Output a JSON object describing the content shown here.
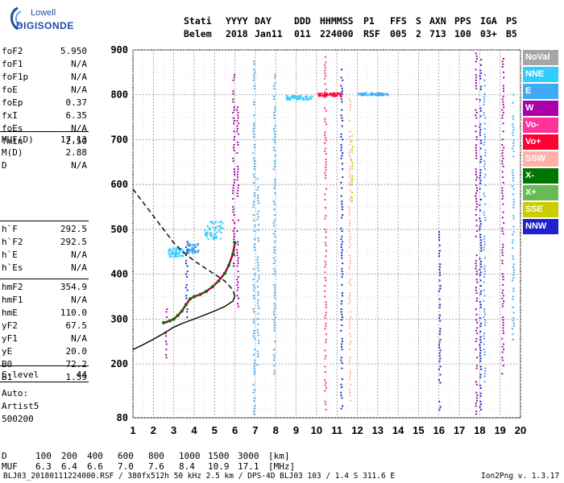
{
  "logo": {
    "brand": "Lowell",
    "product": "DIGISONDE"
  },
  "header": {
    "labels": [
      "Stati",
      "YYYY",
      "DAY",
      "DDD",
      "HHMMSS",
      "P1",
      "FFS",
      "S",
      "AXN",
      "PPS",
      "IGA",
      "PS"
    ],
    "values": [
      "Belem",
      "2018",
      "Jan11",
      "011",
      "224000",
      "RSF",
      "005",
      "2",
      "713",
      "100",
      "03+",
      "B5"
    ]
  },
  "params": {
    "group1": [
      {
        "name": "foF2",
        "value": "5.950"
      },
      {
        "name": "foF1",
        "value": "N/A"
      },
      {
        "name": "foF1p",
        "value": "N/A"
      },
      {
        "name": "foE",
        "value": "N/A"
      },
      {
        "name": "foEp",
        "value": "0.37"
      },
      {
        "name": "fxI",
        "value": "6.35"
      },
      {
        "name": "foEs",
        "value": "N/A"
      },
      {
        "name": "fmin",
        "value": "2.50"
      }
    ],
    "group2": [
      {
        "name": "MUF(D)",
        "value": "17.13"
      },
      {
        "name": "M(D)",
        "value": "2.88"
      },
      {
        "name": "D",
        "value": "N/A"
      }
    ],
    "group3": [
      {
        "name": "h`F",
        "value": "292.5"
      },
      {
        "name": "h`F2",
        "value": "292.5"
      },
      {
        "name": "h`E",
        "value": "N/A"
      },
      {
        "name": "h`Es",
        "value": "N/A"
      }
    ],
    "group4": [
      {
        "name": "hmF2",
        "value": "354.9"
      },
      {
        "name": "hmF1",
        "value": "N/A"
      },
      {
        "name": "hmE",
        "value": "110.0"
      },
      {
        "name": "yF2",
        "value": "67.5"
      },
      {
        "name": "yF1",
        "value": "N/A"
      },
      {
        "name": "yE",
        "value": "20.0"
      },
      {
        "name": "B0",
        "value": "72.2"
      },
      {
        "name": "B1",
        "value": "1.59"
      }
    ],
    "group5": [
      {
        "name": "C-level",
        "value": "44"
      }
    ]
  },
  "autoscale": {
    "line1": "Auto:",
    "line2": "Artist5",
    "line3": "500200"
  },
  "legend": [
    {
      "label": "NoVal",
      "bg": "#a6a6a6",
      "fg": "#ffffff"
    },
    {
      "label": "NNE",
      "bg": "#33ccff",
      "fg": "#ffffff"
    },
    {
      "label": "E",
      "bg": "#3fa9f5",
      "fg": "#ffffff"
    },
    {
      "label": "W",
      "bg": "#aa00aa",
      "fg": "#ffffff"
    },
    {
      "label": "Vo-",
      "bg": "#ff3399",
      "fg": "#ffffff"
    },
    {
      "label": "Vo+",
      "bg": "#ff0033",
      "fg": "#ffffff"
    },
    {
      "label": "SSW",
      "bg": "#ffb0a8",
      "fg": "#ffffff"
    },
    {
      "label": "X-",
      "bg": "#007700",
      "fg": "#ffffff"
    },
    {
      "label": "X+",
      "bg": "#66bb55",
      "fg": "#ffffff"
    },
    {
      "label": "SSE",
      "bg": "#cccc00",
      "fg": "#ffffff"
    },
    {
      "label": "NNW",
      "bg": "#2222cc",
      "fg": "#ffffff"
    }
  ],
  "muf_table": {
    "d_label": "D",
    "d_values": [
      "100",
      "200",
      "400",
      "600",
      "800",
      "1000",
      "1500",
      "3000"
    ],
    "d_unit": "[km]",
    "muf_label": "MUF",
    "muf_values": [
      "6.3",
      "6.4",
      "6.6",
      "7.0",
      "7.6",
      "8.4",
      "10.9",
      "17.1"
    ],
    "muf_unit": "[MHz]"
  },
  "footer": {
    "left": "BLJ03_20180111224000.RSF / 380fx512h 50 kHz 2.5 km / DPS-4D BLJ03 103 / 1.4 S 311.6 E",
    "right": "Ion2Png v. 1.3.17"
  },
  "chart_data": {
    "type": "scatter",
    "title": "",
    "xlabel": "",
    "ylabel": "",
    "xlim": [
      1,
      20
    ],
    "ylim": [
      80,
      900
    ],
    "x_ticks": [
      1,
      2,
      3,
      4,
      5,
      6,
      7,
      8,
      9,
      10,
      11,
      12,
      13,
      14,
      15,
      16,
      17,
      18,
      19,
      20
    ],
    "y_ticks": [
      80,
      200,
      300,
      400,
      500,
      600,
      700,
      800,
      900
    ],
    "grid": true,
    "series": [
      {
        "name": "",
        "role": "ionogram trace",
        "color": "#aa0044",
        "x": [
          2.5,
          2.8,
          3.0,
          3.2,
          3.4,
          3.6,
          3.8,
          4.0,
          4.3,
          4.6,
          4.9,
          5.2,
          5.5,
          5.7,
          5.9,
          6.0
        ],
        "y": [
          292,
          296,
          300,
          308,
          318,
          332,
          345,
          350,
          355,
          362,
          372,
          385,
          402,
          420,
          445,
          470
        ]
      },
      {
        "name": "",
        "role": "profile (dashed)",
        "color": "#000000",
        "x": [
          1.0,
          1.5,
          2.0,
          2.5,
          3.0,
          3.5,
          4.0,
          4.5,
          5.0,
          5.5,
          5.9,
          6.0
        ],
        "y": [
          590,
          560,
          530,
          500,
          470,
          448,
          430,
          415,
          400,
          385,
          365,
          350
        ]
      },
      {
        "name": "",
        "role": "profile (solid)",
        "color": "#000000",
        "x": [
          1.0,
          1.5,
          2.0,
          2.5,
          3.0,
          3.5,
          4.0,
          4.5,
          5.0,
          5.5,
          5.9,
          6.0
        ],
        "y": [
          232,
          243,
          255,
          268,
          282,
          292,
          300,
          309,
          318,
          328,
          340,
          352
        ]
      }
    ],
    "echo_columns": [
      {
        "x": 2.6,
        "y0": 210,
        "y1": 330,
        "color": "#aa00aa"
      },
      {
        "x": 3.6,
        "y0": 300,
        "y1": 480,
        "color": "#2222cc"
      },
      {
        "x": 5.9,
        "y0": 420,
        "y1": 860,
        "color": "#aa00aa"
      },
      {
        "x": 6.1,
        "y0": 330,
        "y1": 780,
        "color": "#aa00aa"
      },
      {
        "x": 6.9,
        "y0": 90,
        "y1": 880,
        "color": "#3fa9f5"
      },
      {
        "x": 7.1,
        "y0": 200,
        "y1": 620,
        "color": "#3fa9f5"
      },
      {
        "x": 7.9,
        "y0": 180,
        "y1": 850,
        "color": "#3fa9f5"
      },
      {
        "x": 10.4,
        "y0": 100,
        "y1": 890,
        "color": "#ff3399"
      },
      {
        "x": 11.2,
        "y0": 90,
        "y1": 870,
        "color": "#2222cc"
      },
      {
        "x": 11.6,
        "y0": 120,
        "y1": 800,
        "color": "#ffb0a8"
      },
      {
        "x": 11.7,
        "y0": 560,
        "y1": 720,
        "color": "#cccc00"
      },
      {
        "x": 16.0,
        "y0": 100,
        "y1": 500,
        "color": "#2222cc"
      },
      {
        "x": 17.8,
        "y0": 90,
        "y1": 900,
        "color": "#aa00aa"
      },
      {
        "x": 18.0,
        "y0": 100,
        "y1": 890,
        "color": "#2222cc"
      },
      {
        "x": 18.2,
        "y0": 150,
        "y1": 850,
        "color": "#3fa9f5"
      },
      {
        "x": 19.1,
        "y0": 180,
        "y1": 900,
        "color": "#aa00aa"
      },
      {
        "x": 19.6,
        "y0": 250,
        "y1": 820,
        "color": "#3fa9f5"
      }
    ],
    "echo_clusters": [
      {
        "x0": 3.6,
        "x1": 4.2,
        "y0": 448,
        "y1": 470,
        "color": "#3fa9f5"
      },
      {
        "x0": 2.7,
        "x1": 3.5,
        "y0": 440,
        "y1": 460,
        "color": "#33ccff"
      },
      {
        "x0": 4.5,
        "x1": 5.4,
        "y0": 480,
        "y1": 520,
        "color": "#33ccff"
      },
      {
        "x0": 8.5,
        "x1": 9.8,
        "y0": 790,
        "y1": 800,
        "color": "#33ccff"
      },
      {
        "x0": 10.0,
        "x1": 11.2,
        "y0": 798,
        "y1": 806,
        "color": "#ff0033"
      },
      {
        "x0": 12.0,
        "x1": 13.5,
        "y0": 800,
        "y1": 806,
        "color": "#3fa9f5"
      }
    ]
  }
}
